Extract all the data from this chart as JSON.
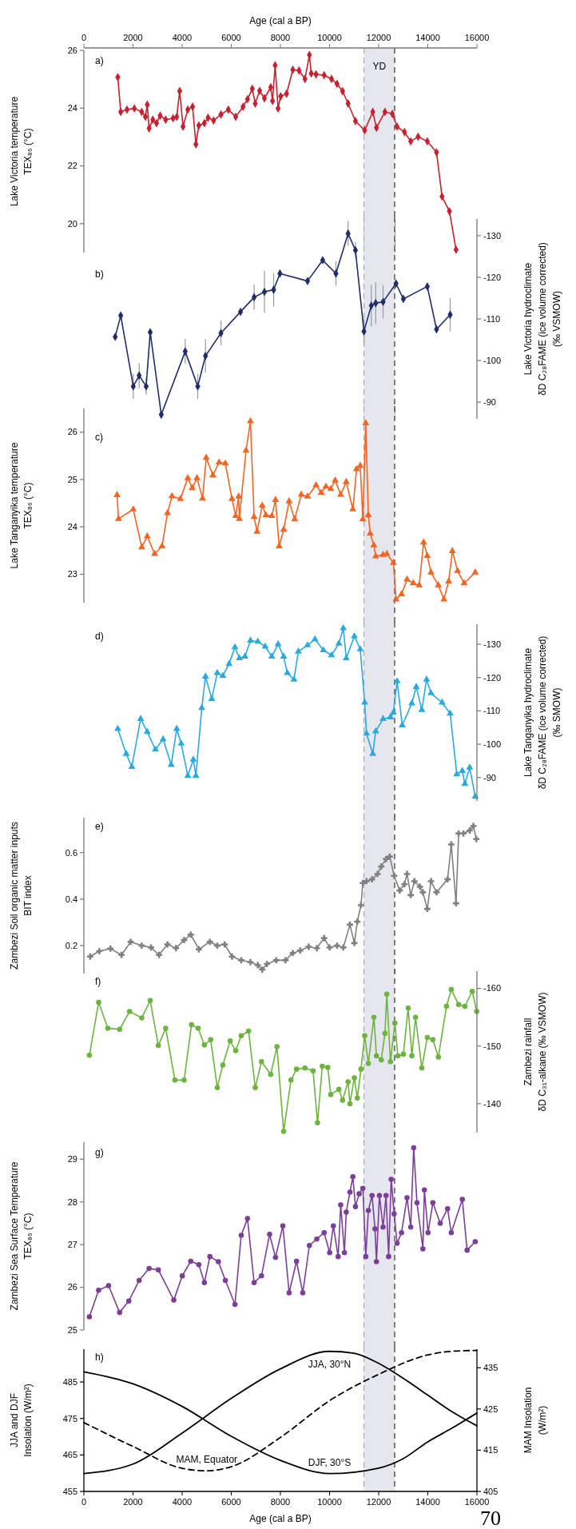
{
  "chart_data": [
    {
      "type": "line",
      "annotations": [
        "a)"
      ],
      "xlim": [
        0,
        16000
      ],
      "tick_labels": "y",
      "ref_lines": [
        {
          "axis": "x",
          "value": 11400,
          "line_style": "dashed",
          "color": "#aaaaaa"
        },
        {
          "axis": "x",
          "value": 12650,
          "line_style": "dashed",
          "color": "#333333"
        }
      ],
      "x2label": "Age (cal a BP)",
      "x2lim": [
        0,
        16000
      ],
      "x2ticks": [
        0,
        2000,
        4000,
        6000,
        8000,
        10000,
        12000,
        14000,
        16000
      ],
      "ylabel": "Lake Victoria temperature\nTEX₈₆ (°C)",
      "ylim": [
        19,
        26
      ],
      "yticks": [
        20,
        22,
        24,
        26
      ],
      "marker": "diamond",
      "bands": [
        {
          "axis": "x",
          "from": 11400,
          "to": 12650,
          "label": "YD",
          "color": "#e6e7ee"
        }
      ],
      "series": [
        {
          "color": "#c8202f",
          "x": [
            1380,
            1500,
            1755,
            2055,
            2355,
            2505,
            2580,
            2655,
            2805,
            2955,
            3105,
            3330,
            3630,
            3780,
            3900,
            4035,
            4230,
            4425,
            4560,
            4680,
            4905,
            5055,
            5280,
            5580,
            5880,
            6180,
            6480,
            6660,
            6855,
            6975,
            7155,
            7350,
            7605,
            7680,
            7785,
            7905,
            8010,
            8250,
            8505,
            8760,
            9000,
            9180,
            9255,
            9450,
            9780,
            10080,
            10305,
            10530,
            10755,
            11055,
            11430,
            11760,
            11910,
            12255,
            12555,
            12750,
            13050,
            13305,
            13605,
            13980,
            14355,
            14580,
            14880,
            15150
          ],
          "values": [
            25.07,
            23.87,
            23.95,
            23.99,
            23.87,
            23.7,
            24.12,
            23.3,
            23.6,
            23.48,
            23.74,
            23.6,
            23.65,
            23.7,
            24.59,
            23.36,
            23.95,
            24.05,
            22.75,
            23.4,
            23.48,
            23.67,
            23.57,
            23.78,
            23.95,
            23.7,
            24.05,
            24.31,
            24.67,
            24.16,
            24.6,
            24.34,
            24.72,
            24.25,
            25.48,
            23.99,
            24.41,
            24.5,
            25.33,
            25.3,
            25.01,
            25.84,
            25.2,
            25.17,
            25.14,
            25.01,
            24.84,
            24.59,
            24.16,
            23.55,
            23.23,
            23.87,
            23.32,
            23.87,
            23.8,
            23.36,
            23.17,
            22.85,
            23.01,
            22.85,
            22.47,
            20.94,
            20.43,
            19.1
          ]
        }
      ]
    },
    {
      "type": "line",
      "annotations": [
        "b)"
      ],
      "xlim": [
        0,
        16000
      ],
      "ref_lines": [
        {
          "axis": "x",
          "value": 11400,
          "line_style": "dashed",
          "color": "#aaaaaa"
        },
        {
          "axis": "x",
          "value": 12650,
          "line_style": "dashed",
          "color": "#333333"
        }
      ],
      "tick_labels": "y",
      "y2label": "Lake Victoria hydroclimate\nδD C₂₈FAME (ice volume corrected)\n(‰ VSMOW)",
      "y2lim": [
        -86,
        -134
      ],
      "y2ticks": [
        -130,
        -120,
        -110,
        -100,
        -90
      ],
      "marker": "diamond",
      "bands": [
        {
          "axis": "x",
          "from": 11400,
          "to": 12650,
          "color": "#e6e7ee"
        }
      ],
      "series": [
        {
          "axis": "y2",
          "color": "#1f2d6b",
          "x": [
            1275,
            1500,
            2010,
            2250,
            2535,
            2700,
            3150,
            4125,
            4635,
            4950,
            5580,
            6375,
            6930,
            7350,
            7725,
            7980,
            9105,
            9720,
            10260,
            10755,
            11055,
            11400,
            11700,
            11880,
            12180,
            12705,
            13005,
            13980,
            14355,
            14910
          ],
          "values": [
            -105.7,
            -110.8,
            -93.8,
            -96.4,
            -93.8,
            -106.8,
            -87.0,
            -102.2,
            -93.8,
            -101.1,
            -106.6,
            -111.7,
            -115.2,
            -116.5,
            -117.0,
            -120.9,
            -119.1,
            -124.1,
            -120.9,
            -130.5,
            -126.5,
            -107.0,
            -113.2,
            -113.8,
            -114.1,
            -118.5,
            -114.8,
            -117.8,
            -107.5,
            -111.0
          ],
          "errors": [
            null,
            null,
            3,
            3,
            2,
            null,
            null,
            3,
            3,
            4,
            3,
            null,
            3,
            5,
            4,
            null,
            null,
            null,
            3,
            3,
            2,
            3,
            5,
            5,
            4,
            null,
            null,
            null,
            null,
            4
          ]
        }
      ]
    },
    {
      "type": "line",
      "annotations": [
        "c)"
      ],
      "xlim": [
        0,
        16000
      ],
      "ref_lines": [
        {
          "axis": "x",
          "value": 11400,
          "line_style": "dashed",
          "color": "#aaaaaa"
        },
        {
          "axis": "x",
          "value": 12650,
          "line_style": "dashed",
          "color": "#333333"
        }
      ],
      "tick_labels": "y",
      "ylabel": "Lake Tanganyika temperature\nTEX₈₆ (°C)",
      "ylim": [
        22.4,
        26.5
      ],
      "yticks": [
        23,
        24,
        25,
        26
      ],
      "marker": "triangle",
      "bands": [
        {
          "axis": "x",
          "from": 11400,
          "to": 12650,
          "color": "#e6e7ee"
        }
      ],
      "series": [
        {
          "color": "#f26522",
          "x": [
            1350,
            1410,
            2010,
            2355,
            2580,
            2880,
            3180,
            3405,
            3585,
            3930,
            4230,
            4410,
            4605,
            4830,
            4980,
            5250,
            5505,
            5760,
            6030,
            6180,
            6300,
            6330,
            6600,
            6780,
            6930,
            7050,
            7260,
            7410,
            7650,
            7800,
            7950,
            8130,
            8355,
            8580,
            8850,
            9105,
            9450,
            9660,
            9855,
            10050,
            10230,
            10455,
            10680,
            10950,
            11100,
            11250,
            11355,
            11475,
            11580,
            11655,
            11805,
            11880,
            12180,
            12330,
            12600,
            12705,
            12930,
            13155,
            13410,
            13650,
            13830,
            13980,
            14130,
            14430,
            14655,
            14850,
            15000,
            15210,
            15480,
            15930
          ],
          "values": [
            24.67,
            24.17,
            24.37,
            23.57,
            23.8,
            23.43,
            23.59,
            24.29,
            24.65,
            24.59,
            25.03,
            24.82,
            25.03,
            24.6,
            25.46,
            25.09,
            25.36,
            25.34,
            24.59,
            24.23,
            24.64,
            24.17,
            25.61,
            26.23,
            24.21,
            23.9,
            24.45,
            24.25,
            24.23,
            24.57,
            23.59,
            23.94,
            24.54,
            24.16,
            24.68,
            24.64,
            24.88,
            24.72,
            24.85,
            24.8,
            24.98,
            24.68,
            24.95,
            24.37,
            25.22,
            25.29,
            24.16,
            26.19,
            24.25,
            23.86,
            23.61,
            23.38,
            23.41,
            23.43,
            23.24,
            22.47,
            22.58,
            22.89,
            22.81,
            22.77,
            23.67,
            23.39,
            23.04,
            22.77,
            22.47,
            22.85,
            23.49,
            23.07,
            22.81,
            23.04
          ]
        }
      ]
    },
    {
      "type": "line",
      "annotations": [
        "d)"
      ],
      "xlim": [
        0,
        16000
      ],
      "ref_lines": [
        {
          "axis": "x",
          "value": 11400,
          "line_style": "dashed",
          "color": "#aaaaaa"
        },
        {
          "axis": "x",
          "value": 12650,
          "line_style": "dashed",
          "color": "#333333"
        }
      ],
      "tick_labels": "y",
      "y2label": "Lake Tanganyika hydroclimate\nδD C₂₈FAME (ice volume corrected)\n(‰ SMOW)",
      "y2lim": [
        -83,
        -136
      ],
      "y2ticks": [
        -130,
        -120,
        -110,
        -100,
        -90
      ],
      "marker": "triangle",
      "bands": [
        {
          "axis": "x",
          "from": 11400,
          "to": 12650,
          "color": "#e6e7ee"
        }
      ],
      "series": [
        {
          "axis": "y2",
          "color": "#29a9e0",
          "x": [
            1380,
            1725,
            1950,
            2310,
            2580,
            2910,
            3225,
            3555,
            3780,
            3960,
            4230,
            4455,
            4560,
            4800,
            4950,
            5205,
            5430,
            5655,
            5910,
            6150,
            6330,
            6555,
            6780,
            7080,
            7380,
            7650,
            7905,
            8130,
            8280,
            8550,
            8730,
            9105,
            9405,
            9750,
            10080,
            10380,
            10560,
            10680,
            11010,
            11250,
            11430,
            11505,
            11760,
            11880,
            12180,
            12480,
            12600,
            12750,
            12960,
            13350,
            13530,
            13755,
            13950,
            14130,
            14580,
            14910,
            15180,
            15405,
            15510,
            15705,
            15930
          ],
          "values": [
            -104.6,
            -97.1,
            -93.2,
            -107.6,
            -103.7,
            -98.4,
            -101.5,
            -93.8,
            -104.6,
            -100.2,
            -90.5,
            -95.4,
            -90.5,
            -110.9,
            -120.3,
            -113.6,
            -121.4,
            -120.5,
            -124.1,
            -129.1,
            -125.8,
            -126.3,
            -131.1,
            -130.8,
            -129.3,
            -126.3,
            -130.0,
            -126.3,
            -121.4,
            -119.4,
            -127.8,
            -129.7,
            -131.5,
            -128.2,
            -126.7,
            -130.2,
            -134.8,
            -125.8,
            -132.4,
            -128.5,
            -112.5,
            -103.2,
            -97.1,
            -103.9,
            -107.6,
            -108.1,
            -109.5,
            -118.9,
            -105.7,
            -112.3,
            -117.2,
            -110.3,
            -119.4,
            -115.3,
            -112.5,
            -109.2,
            -91.0,
            -92.0,
            -88.1,
            -93.0,
            -84.3
          ]
        }
      ]
    },
    {
      "type": "line",
      "annotations": [
        "e)"
      ],
      "xlim": [
        0,
        16000
      ],
      "ref_lines": [
        {
          "axis": "x",
          "value": 11400,
          "line_style": "dashed",
          "color": "#aaaaaa"
        },
        {
          "axis": "x",
          "value": 12650,
          "line_style": "dashed",
          "color": "#333333"
        }
      ],
      "tick_labels": "y",
      "ylabel": "Zambezi Soil organic matter inputs\nBIT index",
      "ylim": [
        0.08,
        0.75
      ],
      "yticks": [
        0.2,
        0.4,
        0.6
      ],
      "marker": "cross",
      "bands": [
        {
          "axis": "x",
          "from": 11400,
          "to": 12650,
          "color": "#e6e7ee"
        }
      ],
      "series": [
        {
          "color": "#808080",
          "x": [
            255,
            630,
            1080,
            1530,
            1905,
            2355,
            2730,
            3060,
            3405,
            3750,
            4080,
            4350,
            4680,
            5130,
            5430,
            5730,
            6030,
            6405,
            6780,
            7080,
            7260,
            7455,
            7830,
            8205,
            8505,
            8805,
            9150,
            9480,
            9780,
            10005,
            10305,
            10560,
            10830,
            11010,
            11130,
            11280,
            11355,
            11505,
            11730,
            11955,
            12105,
            12300,
            12450,
            12630,
            12855,
            13050,
            13155,
            13305,
            13455,
            13680,
            13800,
            13980,
            14130,
            14355,
            14805,
            14955,
            15150,
            15255,
            15450,
            15705,
            15855,
            15975
          ],
          "values": [
            0.153,
            0.176,
            0.187,
            0.16,
            0.216,
            0.2,
            0.192,
            0.16,
            0.205,
            0.189,
            0.224,
            0.247,
            0.184,
            0.216,
            0.2,
            0.205,
            0.153,
            0.137,
            0.129,
            0.116,
            0.097,
            0.121,
            0.137,
            0.137,
            0.168,
            0.179,
            0.195,
            0.189,
            0.232,
            0.192,
            0.2,
            0.192,
            0.29,
            0.211,
            0.303,
            0.374,
            0.469,
            0.477,
            0.485,
            0.508,
            0.54,
            0.572,
            0.583,
            0.5,
            0.437,
            0.464,
            0.508,
            0.417,
            0.477,
            0.453,
            0.429,
            0.358,
            0.477,
            0.429,
            0.485,
            0.635,
            0.382,
            0.682,
            0.682,
            0.695,
            0.714,
            0.658
          ]
        }
      ]
    },
    {
      "type": "line",
      "annotations": [
        "f)"
      ],
      "xlim": [
        0,
        16000
      ],
      "ref_lines": [
        {
          "axis": "x",
          "value": 11400,
          "line_style": "dashed",
          "color": "#aaaaaa"
        },
        {
          "axis": "x",
          "value": 12650,
          "line_style": "dashed",
          "color": "#333333"
        }
      ],
      "tick_labels": "y",
      "y2label": "Zambezi rainfall\nδD C₃₁-alkane (‰ VSMOW)",
      "y2lim": [
        -135,
        -163
      ],
      "y2ticks": [
        -160,
        -150,
        -140
      ],
      "marker": "circle",
      "bands": [
        {
          "axis": "x",
          "from": 11400,
          "to": 12650,
          "color": "#e6e7ee"
        }
      ],
      "series": [
        {
          "axis": "y2",
          "color": "#6db33f",
          "x": [
            225,
            600,
            975,
            1455,
            1860,
            2355,
            2700,
            3030,
            3330,
            3705,
            4080,
            4380,
            4650,
            4905,
            5160,
            5430,
            5655,
            5955,
            6180,
            6405,
            6705,
            6975,
            7230,
            7605,
            7860,
            8130,
            8430,
            8655,
            9000,
            9330,
            9510,
            9705,
            9930,
            10050,
            10380,
            10530,
            10755,
            10830,
            11010,
            11130,
            11280,
            11430,
            11580,
            11805,
            11910,
            12105,
            12255,
            12330,
            12480,
            12660,
            12780,
            13005,
            13200,
            13350,
            13500,
            13755,
            13980,
            14205,
            14430,
            14760,
            14955,
            15255,
            15510,
            15810,
            15990
          ],
          "values": [
            -148.4,
            -157.6,
            -153.1,
            -152.9,
            -156.0,
            -154.9,
            -157.9,
            -150.1,
            -153.1,
            -144.1,
            -144.1,
            -153.7,
            -153.1,
            -150.2,
            -151.1,
            -142.8,
            -146.7,
            -150.9,
            -149.2,
            -151.8,
            -152.6,
            -142.8,
            -147.3,
            -145.1,
            -149.9,
            -135.2,
            -144.1,
            -146.0,
            -146.2,
            -145.7,
            -136.7,
            -146.5,
            -146.3,
            -141.6,
            -142.5,
            -140.6,
            -143.8,
            -140.0,
            -144.5,
            -141.0,
            -146.0,
            -151.8,
            -147.0,
            -155.0,
            -148.3,
            -147.6,
            -152.2,
            -159.0,
            -147.3,
            -154.0,
            -148.3,
            -148.6,
            -156.6,
            -148.3,
            -155.0,
            -146.2,
            -151.5,
            -151.1,
            -148.1,
            -156.9,
            -159.8,
            -157.2,
            -156.9,
            -159.5,
            -156.0
          ]
        }
      ]
    },
    {
      "type": "line",
      "annotations": [
        "g)"
      ],
      "xlim": [
        0,
        16000
      ],
      "ref_lines": [
        {
          "axis": "x",
          "value": 11400,
          "line_style": "dashed",
          "color": "#aaaaaa"
        },
        {
          "axis": "x",
          "value": 12650,
          "line_style": "dashed",
          "color": "#333333"
        }
      ],
      "tick_labels": "y",
      "ylabel": "Zambezi Sea Surface Temperature\nTEX₈₆ (°C)",
      "ylim": [
        25,
        29.4
      ],
      "yticks": [
        25,
        26,
        27,
        28,
        29
      ],
      "marker": "circle",
      "bands": [
        {
          "axis": "x",
          "from": 11400,
          "to": 12650,
          "color": "#e6e7ee"
        }
      ],
      "series": [
        {
          "color": "#7b3f98",
          "x": [
            225,
            600,
            1005,
            1455,
            1830,
            2250,
            2655,
            3030,
            3660,
            4005,
            4350,
            4680,
            4905,
            5130,
            5475,
            5760,
            6150,
            6405,
            6660,
            6930,
            7230,
            7560,
            7800,
            8100,
            8355,
            8655,
            8910,
            9180,
            9480,
            9780,
            10005,
            10155,
            10350,
            10455,
            10605,
            10680,
            10830,
            10950,
            11055,
            11205,
            11355,
            11475,
            11580,
            11730,
            11850,
            11910,
            12030,
            12180,
            12300,
            12405,
            12510,
            12630,
            12750,
            12930,
            13155,
            13305,
            13425,
            13560,
            13800,
            13860,
            14010,
            14205,
            14505,
            14805,
            14955,
            15405,
            15600,
            15930
          ],
          "values": [
            25.31,
            25.93,
            26.04,
            25.41,
            25.68,
            26.16,
            26.44,
            26.41,
            25.7,
            26.27,
            26.61,
            26.53,
            26.11,
            26.72,
            26.6,
            26.16,
            25.6,
            27.22,
            27.61,
            26.11,
            26.27,
            27.24,
            26.7,
            27.44,
            25.87,
            26.61,
            25.87,
            26.98,
            27.13,
            27.28,
            26.81,
            27.44,
            26.72,
            27.93,
            26.81,
            27.76,
            28.23,
            28.59,
            27.89,
            28.19,
            28.32,
            26.72,
            27.8,
            28.15,
            27.37,
            26.6,
            28.15,
            27.41,
            28.15,
            26.72,
            28.53,
            27.72,
            27.03,
            27.28,
            28.1,
            27.41,
            29.27,
            27.98,
            26.9,
            28.28,
            27.28,
            27.98,
            27.5,
            27.84,
            27.28,
            28.06,
            26.87,
            27.07
          ]
        }
      ]
    },
    {
      "type": "line",
      "annotations": [
        "h)",
        "70"
      ],
      "xlim": [
        0,
        16000
      ],
      "ref_lines": [
        {
          "axis": "x",
          "value": 11400,
          "line_style": "dashed",
          "color": "#aaaaaa"
        },
        {
          "axis": "x",
          "value": 12650,
          "line_style": "dashed",
          "color": "#333333"
        }
      ],
      "xticks": [
        0,
        2000,
        4000,
        6000,
        8000,
        10000,
        12000,
        14000,
        16000
      ],
      "xlabel": "Age (cal a BP)",
      "ylabel": "JJA and DJF\nInsolation (W/m²)",
      "ylim": [
        455,
        494
      ],
      "yticks": [
        455,
        465,
        475,
        485
      ],
      "y2label": "MAM Insolation\n(W/m²)",
      "y2lim": [
        405,
        439.5
      ],
      "y2ticks": [
        405,
        415,
        425,
        435
      ],
      "bands": [
        {
          "axis": "x",
          "from": 11400,
          "to": 12650,
          "color": "#e6e7ee"
        }
      ],
      "series": [
        {
          "name": "JJA, 30°N",
          "color": "#000000",
          "line_style": "solid",
          "x": [
            0,
            2000,
            4000,
            6000,
            8000,
            10000,
            11000,
            12000,
            13000,
            14000,
            15000,
            16000
          ],
          "values": [
            459.9,
            462.5,
            471.0,
            480.5,
            488.6,
            493.4,
            492.9,
            490.1,
            486.0,
            481.4,
            476.8,
            473.0
          ]
        },
        {
          "name": "DJF, 30°S",
          "color": "#000000",
          "line_style": "solid",
          "x": [
            0,
            2000,
            4000,
            6000,
            8000,
            10000,
            12000,
            13000,
            14000,
            15000,
            16000
          ],
          "values": [
            487.8,
            484.5,
            478.3,
            470.1,
            463.5,
            459.9,
            461.4,
            464.0,
            468.6,
            472.4,
            476.5
          ]
        },
        {
          "name": "MAM, Equator",
          "color": "#000000",
          "line_style": "dashed",
          "axis": "y2",
          "x": [
            0,
            2000,
            4000,
            5000,
            6000,
            8000,
            10000,
            12000,
            14000,
            15000,
            16000
          ],
          "values": [
            421.7,
            415.9,
            410.6,
            410.0,
            411.0,
            418.1,
            427.0,
            433.4,
            438.1,
            439.0,
            439.2
          ]
        }
      ]
    }
  ]
}
